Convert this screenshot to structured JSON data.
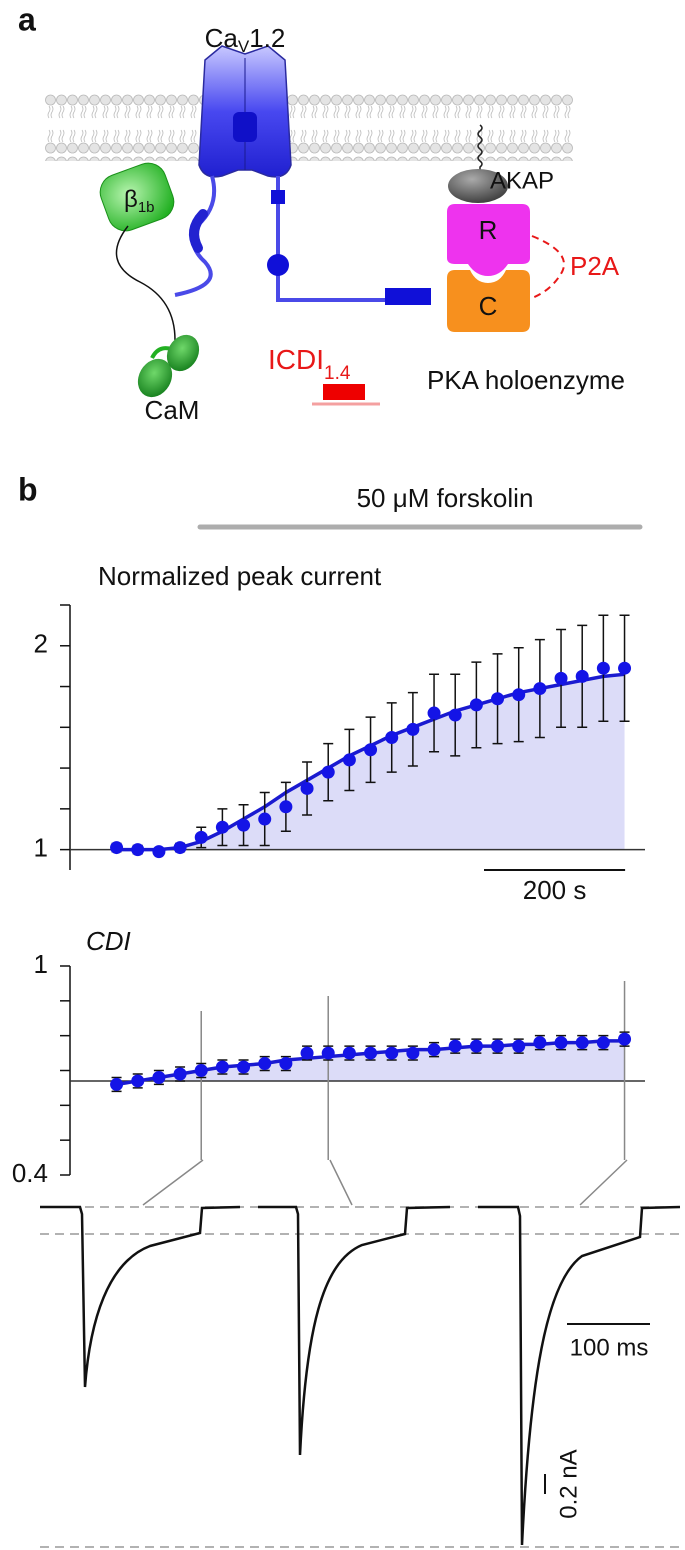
{
  "panel_a": {
    "label": "a",
    "channel": {
      "name": "Ca",
      "sub": "V",
      "suffix": "1.2"
    },
    "beta": {
      "name": "β",
      "sub": "1b"
    },
    "cam": "CaM",
    "icdi": {
      "name": "ICDI",
      "sub": "1.4"
    },
    "akap": "AKAP",
    "r": "R",
    "c": "C",
    "p2a": "P2A",
    "pka": "PKA holoenzyme"
  },
  "panel_b_label": "b",
  "treatment": "50 μM forskolin",
  "chart_data": [
    {
      "type": "scatter",
      "title": "Normalized peak current",
      "x": [
        0,
        30,
        60,
        90,
        120,
        150,
        180,
        210,
        240,
        270,
        300,
        330,
        360,
        390,
        420,
        450,
        480,
        510,
        540,
        570,
        600,
        630,
        660,
        690,
        720
      ],
      "series": [
        {
          "color": "#1414e6",
          "values": [
            1.01,
            1.0,
            0.99,
            1.01,
            1.06,
            1.11,
            1.12,
            1.15,
            1.21,
            1.3,
            1.38,
            1.44,
            1.49,
            1.55,
            1.59,
            1.67,
            1.66,
            1.71,
            1.74,
            1.76,
            1.79,
            1.84,
            1.85,
            1.89,
            1.89
          ],
          "errors": [
            0.02,
            0.02,
            0.01,
            0.02,
            0.05,
            0.09,
            0.1,
            0.13,
            0.12,
            0.13,
            0.14,
            0.15,
            0.16,
            0.17,
            0.18,
            0.19,
            0.2,
            0.21,
            0.22,
            0.23,
            0.24,
            0.24,
            0.25,
            0.26,
            0.26
          ]
        }
      ],
      "fit": [
        1.0,
        1.0,
        1.0,
        1.01,
        1.04,
        1.09,
        1.15,
        1.21,
        1.28,
        1.34,
        1.4,
        1.46,
        1.51,
        1.56,
        1.6,
        1.64,
        1.68,
        1.71,
        1.74,
        1.77,
        1.79,
        1.81,
        1.83,
        1.85,
        1.86
      ],
      "baseline": 1,
      "xlim": [
        -66,
        749
      ],
      "ylim": [
        0.9,
        2.2
      ],
      "yticks": [
        1,
        2
      ],
      "yminorticks": [
        1.2,
        1.4,
        1.6,
        1.8,
        2.2
      ],
      "xscalebar": {
        "value": 200,
        "label": "200 s"
      }
    },
    {
      "type": "scatter",
      "title": "CDI",
      "x": [
        0,
        30,
        60,
        90,
        120,
        150,
        180,
        210,
        240,
        270,
        300,
        330,
        360,
        390,
        420,
        450,
        480,
        510,
        540,
        570,
        600,
        630,
        660,
        690,
        720
      ],
      "series": [
        {
          "color": "#1414e6",
          "values": [
            0.66,
            0.67,
            0.68,
            0.69,
            0.7,
            0.71,
            0.71,
            0.72,
            0.72,
            0.75,
            0.75,
            0.75,
            0.75,
            0.75,
            0.75,
            0.76,
            0.77,
            0.77,
            0.77,
            0.77,
            0.78,
            0.78,
            0.78,
            0.78,
            0.79
          ],
          "errors": [
            0.02,
            0.02,
            0.02,
            0.02,
            0.02,
            0.02,
            0.02,
            0.02,
            0.02,
            0.02,
            0.02,
            0.02,
            0.02,
            0.02,
            0.02,
            0.02,
            0.02,
            0.02,
            0.02,
            0.02,
            0.02,
            0.02,
            0.02,
            0.02,
            0.02
          ]
        }
      ],
      "fit": [
        0.66,
        0.67,
        0.68,
        0.69,
        0.7,
        0.71,
        0.715,
        0.72,
        0.73,
        0.735,
        0.74,
        0.745,
        0.75,
        0.755,
        0.76,
        0.76,
        0.765,
        0.77,
        0.77,
        0.775,
        0.775,
        0.78,
        0.78,
        0.785,
        0.785
      ],
      "baseline": 0.67,
      "xlim": [
        -66,
        749
      ],
      "ylim": [
        0.4,
        1
      ],
      "yticks": [
        0.4,
        1
      ],
      "yminorticks": [
        0.5,
        0.6,
        0.7,
        0.8,
        0.9
      ],
      "markers": [
        120,
        300,
        720
      ]
    }
  ],
  "traces": {
    "time_scalebar": "100 ms",
    "current_scalebar": "0.2 nA"
  }
}
